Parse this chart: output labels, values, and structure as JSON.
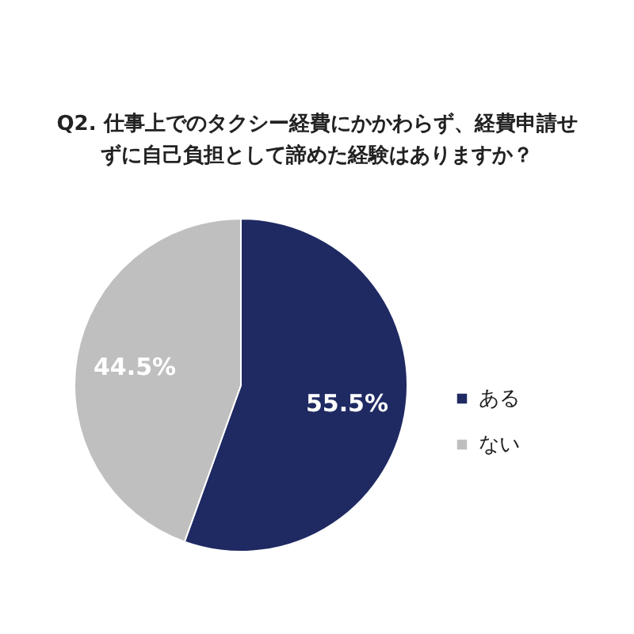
{
  "chart_data": {
    "type": "pie",
    "title": "Q2. 仕事上でのタクシー経費にかかわらず、経費申請せずに自己負担として諦めた経験はありますか？",
    "categories": [
      "ある",
      "ない"
    ],
    "values": [
      55.5,
      44.5
    ],
    "colors": [
      "#1f2a63",
      "#bfbfbf"
    ],
    "value_labels": [
      "55.5%",
      "44.5%"
    ],
    "legend": "right"
  }
}
